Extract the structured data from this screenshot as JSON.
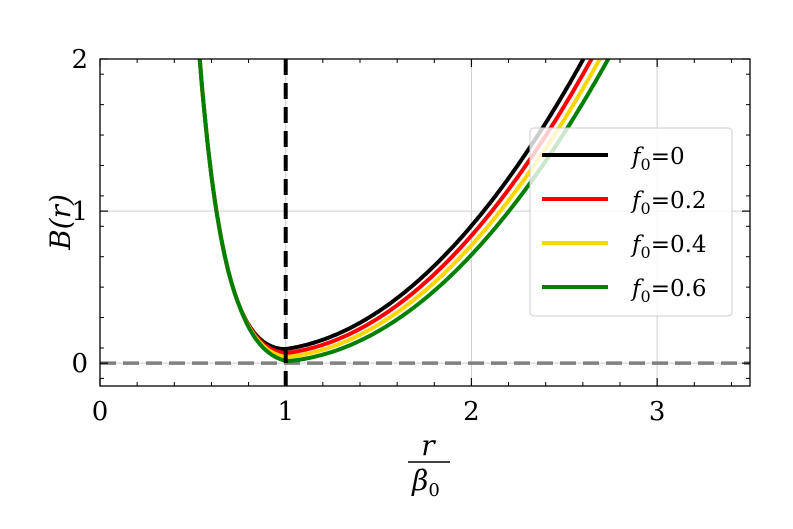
{
  "chart_data": {
    "type": "line",
    "title": "",
    "xlabel": {
      "numerator": "r",
      "denominator_symbol": "β",
      "denominator_sub": "0"
    },
    "ylabel": "B(r)",
    "xlim": [
      0,
      3.5
    ],
    "ylim": [
      -0.15,
      2
    ],
    "xticks": [
      0,
      1,
      2,
      3
    ],
    "yticks": [
      0,
      1,
      2
    ],
    "grid": true,
    "legend_position": "center-right",
    "vertical_line": {
      "x": 1,
      "color": "#000000",
      "style": "dashed"
    },
    "horizontal_line": {
      "y": 0,
      "color": "#808080",
      "style": "dashed"
    },
    "series": [
      {
        "name_base": "f",
        "name_sub": "0",
        "name_value": "=0",
        "f0": 0,
        "color": "#000000"
      },
      {
        "name_base": "f",
        "name_sub": "0",
        "name_value": "=0.2",
        "f0": 0.2,
        "color": "#ff0000"
      },
      {
        "name_base": "f",
        "name_sub": "0",
        "name_value": "=0.4",
        "f0": 0.4,
        "color": "#ffd700"
      },
      {
        "name_base": "f",
        "name_sub": "0",
        "name_value": "=0.6",
        "f0": 0.6,
        "color": "#008000"
      }
    ]
  }
}
